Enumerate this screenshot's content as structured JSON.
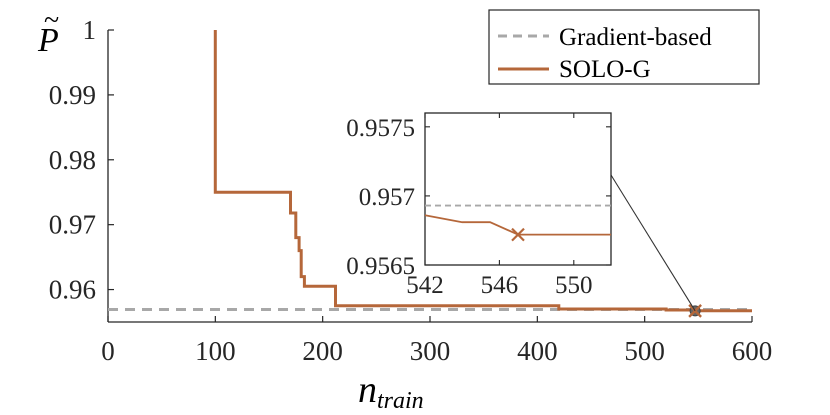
{
  "chart_data": {
    "type": "line",
    "title": "",
    "xlabel": "n",
    "xlabel_subscript": "train",
    "ylabel": "P",
    "ylabel_accent": "~",
    "xlim": [
      0,
      600
    ],
    "ylim": [
      0.955,
      1.0
    ],
    "xticks": [
      0,
      100,
      200,
      300,
      400,
      500,
      600
    ],
    "xtick_labels": [
      "0",
      "100",
      "200",
      "300",
      "400",
      "500",
      "600"
    ],
    "yticks": [
      0.96,
      0.97,
      0.98,
      0.99,
      1.0
    ],
    "ytick_labels": [
      "0.96",
      "0.97",
      "0.98",
      "0.99",
      "1"
    ],
    "legend": {
      "position": "top-right",
      "entries": [
        "Gradient-based",
        "SOLO-G"
      ]
    },
    "colors": {
      "gradient": "#a8a8a8",
      "solo": "#b5673a",
      "axis": "#262626"
    },
    "series": [
      {
        "name": "Gradient-based",
        "style": "dashed",
        "x": [
          0,
          600
        ],
        "y": [
          0.95693,
          0.95693
        ]
      },
      {
        "name": "SOLO-G",
        "style": "step",
        "x": [
          100,
          100,
          170,
          170,
          175,
          175,
          178,
          178,
          180,
          180,
          183,
          183,
          186,
          186,
          212,
          212,
          420,
          420,
          520,
          520,
          547,
          547,
          600
        ],
        "y": [
          1.0,
          0.975,
          0.975,
          0.9718,
          0.9718,
          0.968,
          0.968,
          0.966,
          0.966,
          0.962,
          0.962,
          0.9605,
          0.9605,
          0.9605,
          0.9605,
          0.9575,
          0.9575,
          0.957,
          0.957,
          0.95685,
          0.95685,
          0.95672,
          0.95672
        ]
      }
    ],
    "marker": {
      "x": 547,
      "y": 0.95672,
      "symbol": "x"
    },
    "inset": {
      "xlim": [
        542,
        552
      ],
      "ylim": [
        0.9565,
        0.9576
      ],
      "xticks": [
        542,
        546,
        550
      ],
      "xtick_labels": [
        "542",
        "546",
        "550"
      ],
      "yticks": [
        0.9565,
        0.957,
        0.9575
      ],
      "ytick_labels": [
        "0.9565",
        "0.957",
        "0.9575"
      ],
      "gradient_y": 0.95693,
      "solo_x": [
        542,
        544,
        545.5,
        547,
        552
      ],
      "solo_y": [
        0.95686,
        0.95681,
        0.95681,
        0.95672,
        0.95672
      ],
      "marker": {
        "x": 547,
        "y": 0.95672
      }
    }
  }
}
